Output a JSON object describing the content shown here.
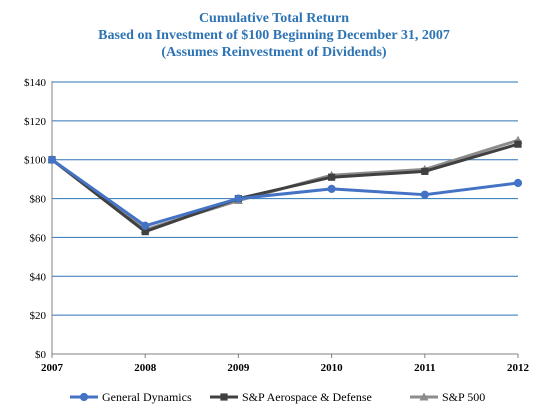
{
  "chart_data": {
    "type": "line",
    "title": "Cumulative Total Return",
    "subtitle": "Based on Investment of $100 Beginning December 31, 2007",
    "subtitle2": "(Assumes Reinvestment of Dividends)",
    "x": [
      "2007",
      "2008",
      "2009",
      "2010",
      "2011",
      "2012"
    ],
    "ylim": [
      0,
      140
    ],
    "yticks": [
      "$0",
      "$20",
      "$40",
      "$60",
      "$80",
      "$100",
      "$120",
      "$140"
    ],
    "grid": true,
    "legend_position": "bottom",
    "series": [
      {
        "name": "General Dynamics",
        "color": "#4472c4",
        "marker": "circle",
        "values": [
          100,
          66,
          80,
          85,
          82,
          88
        ]
      },
      {
        "name": "S&P Aerospace & Defense",
        "color": "#404040",
        "marker": "square",
        "values": [
          100,
          63,
          80,
          91,
          94,
          108
        ]
      },
      {
        "name": "S&P 500",
        "color": "#8c8c8c",
        "marker": "triangle",
        "values": [
          100,
          64,
          79,
          92,
          95,
          110
        ]
      }
    ],
    "gridline_color": "#2e74b5"
  }
}
